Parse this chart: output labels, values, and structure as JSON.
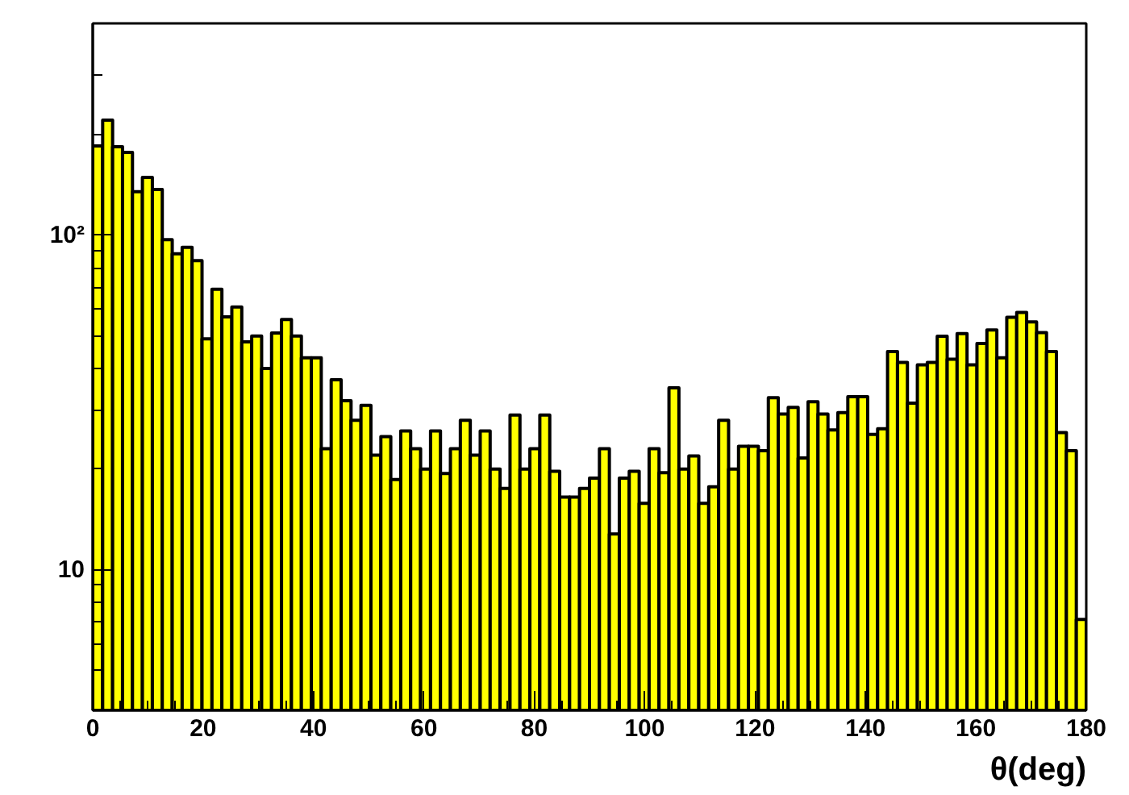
{
  "chart_data": {
    "type": "histogram",
    "xlabel": "θ(deg)",
    "color": "#ffff00",
    "log": true,
    "bins": [
      0,
      1.8,
      3.6,
      5.4,
      7.2,
      9,
      10.8,
      12.6,
      14.4,
      16.2,
      18,
      19.8,
      21.6,
      23.4,
      25.2,
      27,
      28.8,
      30.6,
      32.4,
      34.2,
      36,
      37.8,
      39.6,
      41.4,
      43.2,
      45,
      46.8,
      48.6,
      50.4,
      52.2,
      54,
      55.8,
      57.6,
      59.4,
      61.2,
      63,
      64.8,
      66.6,
      68.4,
      70.2,
      72,
      73.8,
      75.6,
      77.4,
      79.2,
      81,
      82.8,
      84.6,
      86.4,
      88.2,
      90,
      91.8,
      93.6,
      95.4,
      97.2,
      99,
      100.8,
      102.6,
      104.4,
      106.2,
      108,
      109.8,
      111.6,
      113.4,
      115.2,
      117,
      118.8,
      120.6,
      122.4,
      124.2,
      126,
      127.8,
      129.6,
      131.4,
      133.2,
      135,
      136.8,
      138.6,
      140.4,
      142.2,
      144,
      145.8,
      147.6,
      149.4,
      151.2,
      153,
      154.8,
      156.6,
      158.4,
      160.2,
      162,
      163.8,
      165.6,
      167.4,
      169.2,
      171,
      172.8,
      174.6,
      176.4,
      178.2,
      180
    ],
    "values": [
      185,
      221,
      184,
      177,
      135,
      149,
      137,
      97,
      88,
      92,
      84,
      49,
      69,
      57,
      61,
      48,
      50,
      40,
      51,
      56,
      50,
      43,
      43,
      23,
      37,
      32,
      28,
      31,
      22,
      25,
      18.6,
      26,
      23,
      20,
      26,
      19.4,
      23,
      28,
      22,
      26,
      20,
      17.5,
      29,
      20,
      23,
      29,
      19.7,
      16.5,
      16.5,
      17.5,
      18.8,
      23,
      12.8,
      18.8,
      19.7,
      15.8,
      23,
      19.5,
      35,
      20,
      21.9,
      15.8,
      17.7,
      28,
      20,
      23.4,
      23.4,
      22.7,
      32.7,
      29.2,
      30.6,
      21.6,
      31.8,
      29.2,
      26.2,
      29.5,
      32.9,
      32.9,
      25.4,
      26.4,
      44.9,
      41.7,
      31.5,
      41,
      41.7,
      49.9,
      42.6,
      50.8,
      41,
      47.5,
      52.1,
      43,
      56.9,
      58.8,
      55.1,
      51.2,
      44.9,
      25.7,
      22.7,
      7.1
    ],
    "xlim": [
      0,
      180
    ],
    "xticks": [
      0,
      20,
      40,
      60,
      80,
      100,
      120,
      140,
      160,
      180,
      {
        "value": 5,
        "label": null
      },
      {
        "value": 10,
        "label": null
      },
      {
        "value": 15,
        "label": null
      },
      {
        "value": 25,
        "label": null
      },
      {
        "value": 30,
        "label": null
      },
      {
        "value": 35,
        "label": null
      },
      {
        "value": 45,
        "label": null
      },
      {
        "value": 50,
        "label": null
      },
      {
        "value": 55,
        "label": null
      },
      {
        "value": 65,
        "label": null
      },
      {
        "value": 70,
        "label": null
      },
      {
        "value": 75,
        "label": null
      },
      {
        "value": 85,
        "label": null
      },
      {
        "value": 90,
        "label": null
      },
      {
        "value": 95,
        "label": null
      },
      {
        "value": 105,
        "label": null
      },
      {
        "value": 110,
        "label": null
      },
      {
        "value": 115,
        "label": null
      },
      {
        "value": 125,
        "label": null
      },
      {
        "value": 130,
        "label": null
      },
      {
        "value": 135,
        "label": null
      },
      {
        "value": 145,
        "label": null
      },
      {
        "value": 150,
        "label": null
      },
      {
        "value": 155,
        "label": null
      },
      {
        "value": 165,
        "label": null
      },
      {
        "value": 170,
        "label": null
      },
      {
        "value": 175,
        "label": null
      }
    ],
    "ylim": [
      3.8,
      430
    ],
    "yticks": [
      10,
      {
        "value": 100,
        "label": "10²"
      },
      {
        "value": 5,
        "label": null
      },
      {
        "value": 6,
        "label": null
      },
      {
        "value": 7,
        "label": null
      },
      {
        "value": 8,
        "label": null
      },
      {
        "value": 9,
        "label": null
      },
      {
        "value": 20,
        "label": null
      },
      {
        "value": 30,
        "label": null
      },
      {
        "value": 40,
        "label": null
      },
      {
        "value": 50,
        "label": null
      },
      {
        "value": 60,
        "label": null
      },
      {
        "value": 70,
        "label": null
      },
      {
        "value": 80,
        "label": null
      },
      {
        "value": 90,
        "label": null
      },
      {
        "value": 200,
        "label": null
      },
      {
        "value": 300,
        "label": null
      }
    ]
  }
}
